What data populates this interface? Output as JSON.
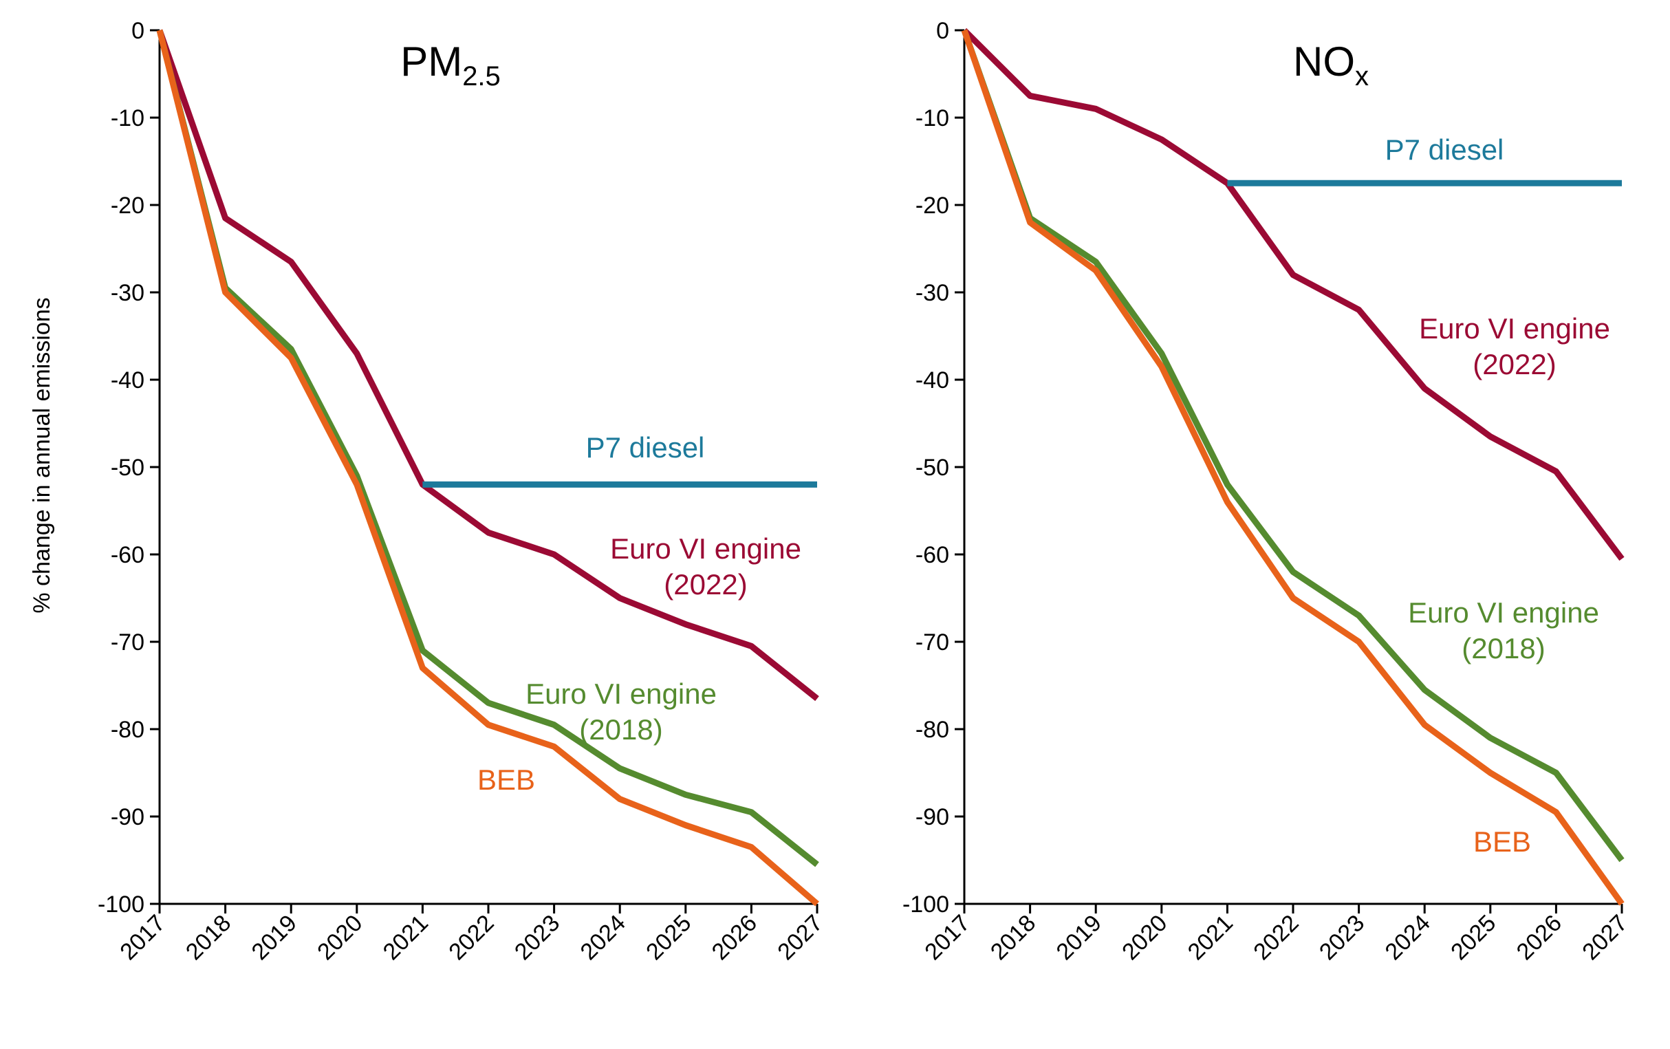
{
  "ylabel": "% change in annual emissions",
  "chart_data": [
    {
      "type": "line",
      "title": "PM",
      "title_sub": "2.5",
      "xlabel": "",
      "ylabel": "% change in annual emissions",
      "categories": [
        "2017",
        "2018",
        "2019",
        "2020",
        "2021",
        "2022",
        "2023",
        "2024",
        "2025",
        "2026",
        "2027"
      ],
      "ylim": [
        -100,
        0
      ],
      "yticks": [
        0,
        -10,
        -20,
        -30,
        -40,
        -50,
        -60,
        -70,
        -80,
        -90,
        -100
      ],
      "grid": false,
      "series": [
        {
          "name": "P7 diesel",
          "color": "#1d7a9b",
          "x": [
            "2021",
            "2022",
            "2023",
            "2024",
            "2025",
            "2026",
            "2027"
          ],
          "values": [
            -52,
            -52,
            -52,
            -52,
            -52,
            -52,
            -52
          ]
        },
        {
          "name": "Euro VI engine (2022)",
          "color": "#9b0a34",
          "x": [
            "2017",
            "2018",
            "2019",
            "2020",
            "2021",
            "2022",
            "2023",
            "2024",
            "2025",
            "2026",
            "2027"
          ],
          "values": [
            0,
            -21.5,
            -26.5,
            -37,
            -52,
            -57.5,
            -60,
            -65,
            -68,
            -70.5,
            -76.5
          ]
        },
        {
          "name": "Euro VI engine (2018)",
          "color": "#558b2f",
          "x": [
            "2017",
            "2018",
            "2019",
            "2020",
            "2021",
            "2022",
            "2023",
            "2024",
            "2025",
            "2026",
            "2027"
          ],
          "values": [
            0,
            -29.5,
            -36.5,
            -51,
            -71,
            -77,
            -79.5,
            -84.5,
            -87.5,
            -89.5,
            -95.5
          ]
        },
        {
          "name": "BEB",
          "color": "#e8621a",
          "x": [
            "2017",
            "2018",
            "2019",
            "2020",
            "2021",
            "2022",
            "2023",
            "2024",
            "2025",
            "2026",
            "2027"
          ],
          "values": [
            0,
            -30,
            -37.5,
            -52,
            -73,
            -79.5,
            -82,
            -88,
            -91,
            -93.5,
            -100
          ]
        }
      ],
      "annotations": [
        {
          "series": "P7 diesel",
          "lines": [
            "P7 diesel"
          ]
        },
        {
          "series": "Euro VI engine (2022)",
          "lines": [
            "Euro VI engine",
            "(2022)"
          ]
        },
        {
          "series": "Euro VI engine (2018)",
          "lines": [
            "Euro VI engine",
            "(2018)"
          ]
        },
        {
          "series": "BEB",
          "lines": [
            "BEB"
          ]
        }
      ]
    },
    {
      "type": "line",
      "title": "NO",
      "title_sub": "x",
      "xlabel": "",
      "ylabel": "",
      "categories": [
        "2017",
        "2018",
        "2019",
        "2020",
        "2021",
        "2022",
        "2023",
        "2024",
        "2025",
        "2026",
        "2027"
      ],
      "ylim": [
        -100,
        0
      ],
      "yticks": [
        0,
        -10,
        -20,
        -30,
        -40,
        -50,
        -60,
        -70,
        -80,
        -90,
        -100
      ],
      "grid": false,
      "series": [
        {
          "name": "P7 diesel",
          "color": "#1d7a9b",
          "x": [
            "2021",
            "2022",
            "2023",
            "2024",
            "2025",
            "2026",
            "2027"
          ],
          "values": [
            -17.5,
            -17.5,
            -17.5,
            -17.5,
            -17.5,
            -17.5,
            -17.5
          ]
        },
        {
          "name": "Euro VI engine (2022)",
          "color": "#9b0a34",
          "x": [
            "2017",
            "2018",
            "2019",
            "2020",
            "2021",
            "2022",
            "2023",
            "2024",
            "2025",
            "2026",
            "2027"
          ],
          "values": [
            0,
            -7.5,
            -9,
            -12.5,
            -17.5,
            -28,
            -32,
            -41,
            -46.5,
            -50.5,
            -60.5
          ]
        },
        {
          "name": "Euro VI engine (2018)",
          "color": "#558b2f",
          "x": [
            "2017",
            "2018",
            "2019",
            "2020",
            "2021",
            "2022",
            "2023",
            "2024",
            "2025",
            "2026",
            "2027"
          ],
          "values": [
            0,
            -21.5,
            -26.5,
            -37,
            -52,
            -62,
            -67,
            -75.5,
            -81,
            -85,
            -95
          ]
        },
        {
          "name": "BEB",
          "color": "#e8621a",
          "x": [
            "2017",
            "2018",
            "2019",
            "2020",
            "2021",
            "2022",
            "2023",
            "2024",
            "2025",
            "2026",
            "2027"
          ],
          "values": [
            0,
            -22,
            -27.5,
            -38.5,
            -54,
            -65,
            -70,
            -79.5,
            -85,
            -89.5,
            -100
          ]
        }
      ],
      "annotations": [
        {
          "series": "P7 diesel",
          "lines": [
            "P7 diesel"
          ]
        },
        {
          "series": "Euro VI engine (2022)",
          "lines": [
            "Euro VI engine",
            "(2022)"
          ]
        },
        {
          "series": "Euro VI engine (2018)",
          "lines": [
            "Euro VI engine",
            "(2018)"
          ]
        },
        {
          "series": "BEB",
          "lines": [
            "BEB"
          ]
        }
      ]
    }
  ]
}
